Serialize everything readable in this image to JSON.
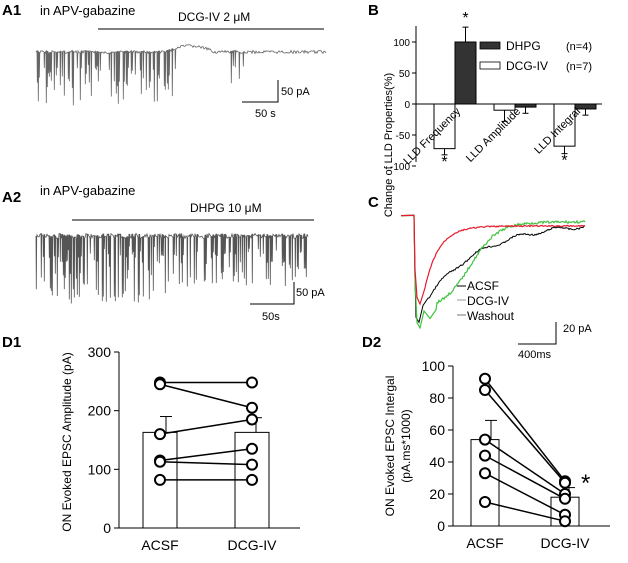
{
  "panel_labels": {
    "a1": "A1",
    "a2": "A2",
    "b": "B",
    "c": "C",
    "d1": "D1",
    "d2": "D2"
  },
  "a1": {
    "condition": "in APV-gabazine",
    "drug": "DCG-IV 2 μM",
    "scale_y": "50 pA",
    "scale_x": "50 s"
  },
  "a2": {
    "condition": "in APV-gabazine",
    "drug": "DHPG 10 μM",
    "scale_y": "50 pA",
    "scale_x": "50s"
  },
  "c": {
    "legend": [
      "ACSF",
      "DCG-IV",
      "Washout"
    ],
    "scale_y": "20 pA",
    "scale_x": "400ms",
    "colors": {
      "acsf": "#000000",
      "dcg": "#3fc23f",
      "washout": "#e8192c"
    }
  },
  "chart_data": [
    {
      "type": "bar",
      "title": "B",
      "ylabel": "Change of LLD Properties(%)",
      "ylim": [
        -100,
        100
      ],
      "yticks": [
        "100",
        "50",
        "0",
        "-50",
        "-100"
      ],
      "categories": [
        "LLD Frequency",
        "LLD Amplitude",
        "LLD Integral"
      ],
      "series": [
        {
          "name": "DCG-IV",
          "n": "(n=7)",
          "values": [
            -72,
            -10,
            -68
          ],
          "errors": [
            10,
            18,
            12
          ],
          "color": "#ffffff"
        },
        {
          "name": "DHPG",
          "n": "(n=4)",
          "values": [
            100,
            -5,
            -8
          ],
          "errors": [
            24,
            10,
            10
          ],
          "color": "#333333"
        }
      ],
      "significance": [
        {
          "label": "*",
          "category": "LLD Frequency",
          "series": "DCG-IV"
        },
        {
          "label": "*",
          "category": "LLD Frequency",
          "series": "DHPG"
        },
        {
          "label": "*",
          "category": "LLD Integral",
          "series": "DCG-IV"
        }
      ]
    },
    {
      "type": "bar",
      "title": "D1",
      "ylabel": "ON Evoked EPSC Amplitude (pA)",
      "ylim": [
        0,
        300
      ],
      "yticks": [
        "0",
        "100",
        "200",
        "300"
      ],
      "categories": [
        "ACSF",
        "DCG-IV"
      ],
      "means": [
        163,
        163
      ],
      "errors": [
        27,
        25
      ],
      "paired_points": [
        [
          248,
          248
        ],
        [
          245,
          205
        ],
        [
          160,
          185
        ],
        [
          115,
          135
        ],
        [
          113,
          108
        ],
        [
          82,
          82
        ]
      ]
    },
    {
      "type": "bar",
      "title": "D2",
      "ylabel": "ON Evoked EPSC  Intergal",
      "ylabel2": "(pA.ms*1000)",
      "ylim": [
        0,
        100
      ],
      "yticks": [
        "0",
        "20",
        "40",
        "60",
        "80",
        "100"
      ],
      "categories": [
        "ACSF",
        "DCG-IV"
      ],
      "means": [
        54,
        18
      ],
      "errors": [
        12,
        6
      ],
      "paired_points": [
        [
          92,
          28
        ],
        [
          85,
          27
        ],
        [
          54,
          20
        ],
        [
          44,
          17
        ],
        [
          33,
          7
        ],
        [
          15,
          3
        ]
      ],
      "significance": "*"
    }
  ]
}
